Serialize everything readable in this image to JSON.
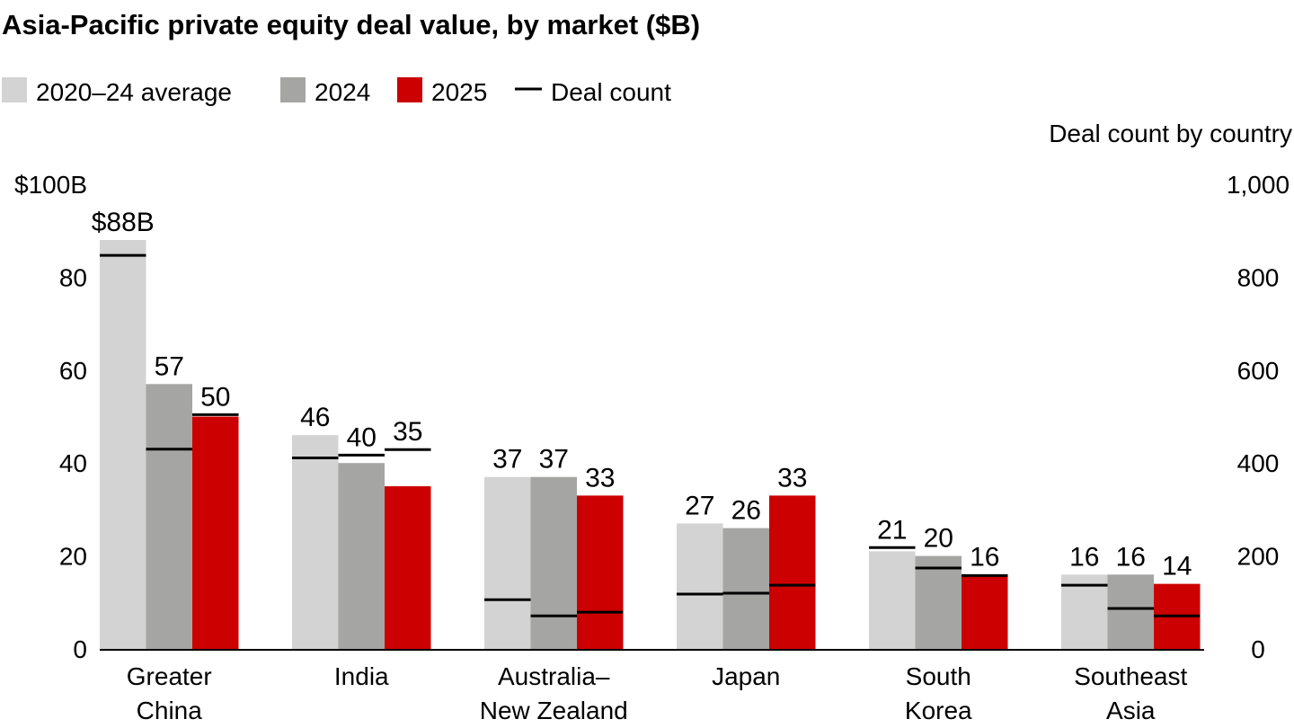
{
  "chart_data": {
    "type": "bar",
    "title": "Asia-Pacific private equity deal value, by market ($B)",
    "categories": [
      [
        "Greater",
        "China"
      ],
      [
        "India"
      ],
      [
        "Australia–",
        "New Zealand"
      ],
      [
        "Japan"
      ],
      [
        "South",
        "Korea"
      ],
      [
        "Southeast",
        "Asia"
      ]
    ],
    "series": [
      {
        "name": "2020–24 average",
        "color": "#d3d3d3",
        "values": [
          88,
          46,
          37,
          27,
          21,
          16
        ],
        "labels": [
          "$88B",
          "46",
          "37",
          "27",
          "21",
          "16"
        ]
      },
      {
        "name": "2024",
        "color": "#a5a5a4",
        "values": [
          57,
          40,
          37,
          26,
          20,
          16
        ],
        "labels": [
          "57",
          "40",
          "37",
          "26",
          "20",
          "16"
        ]
      },
      {
        "name": "2025",
        "color": "#cc0000",
        "values": [
          50,
          35,
          33,
          33,
          16,
          14
        ],
        "labels": [
          "50",
          "35",
          "33",
          "33",
          "16",
          "14"
        ]
      }
    ],
    "deal_count": {
      "name": "Deal count",
      "color": "#000000",
      "values": [
        [
          847,
          430,
          504
        ],
        [
          411,
          417,
          429
        ],
        [
          106,
          71,
          79
        ],
        [
          118,
          120,
          137
        ],
        [
          218,
          174,
          158
        ],
        [
          137,
          87,
          71
        ]
      ]
    },
    "y_left": {
      "ylim": [
        0,
        100
      ],
      "ticks": [
        0,
        20,
        40,
        60,
        80,
        100
      ],
      "tick_labels": [
        "0",
        "20",
        "40",
        "60",
        "80",
        "$100B"
      ]
    },
    "y_right": {
      "label": "Deal count by country",
      "ylim": [
        0,
        1000
      ],
      "ticks": [
        0,
        200,
        400,
        600,
        800,
        1000
      ],
      "tick_labels": [
        "0",
        "200",
        "400",
        "600",
        "800",
        "1,000"
      ]
    },
    "legend": {
      "placement": "top-left",
      "entries": [
        "2020–24 average",
        "2024",
        "2025",
        "Deal count"
      ]
    },
    "grid": false
  }
}
